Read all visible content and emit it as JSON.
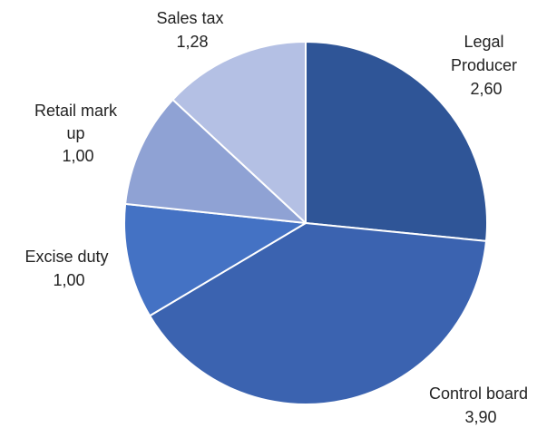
{
  "chart_data": {
    "type": "pie",
    "start_angle_deg": 0,
    "direction": "clockwise",
    "slices": [
      {
        "label_lines": [
          "Legal",
          "Producer"
        ],
        "value_text": "2,60",
        "value": 2.6,
        "color": "#2F5597"
      },
      {
        "label_lines": [
          "Control board"
        ],
        "value_text": "3,90",
        "value": 3.9,
        "color": "#3B63B0"
      },
      {
        "label_lines": [
          "Excise duty"
        ],
        "value_text": "1,00",
        "value": 1.0,
        "color": "#4472C4"
      },
      {
        "label_lines": [
          "Retail mark",
          "up"
        ],
        "value_text": "1,00",
        "value": 1.0,
        "color": "#8FA2D4"
      },
      {
        "label_lines": [
          "Sales tax"
        ],
        "value_text": "1,28",
        "value": 1.28,
        "color": "#B4C0E4"
      }
    ]
  }
}
